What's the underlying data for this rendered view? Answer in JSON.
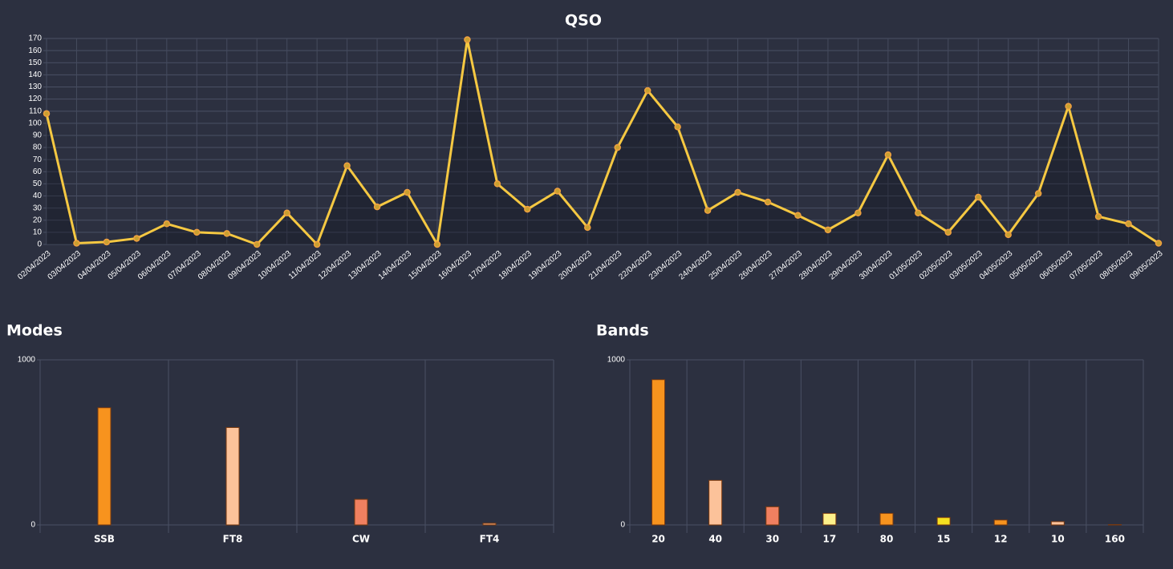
{
  "chart_data": [
    {
      "type": "line",
      "title": "QSO",
      "color": "#f5c842",
      "x": [
        "02/04/2023",
        "03/04/2023",
        "04/04/2023",
        "05/04/2023",
        "06/04/2023",
        "07/04/2023",
        "08/04/2023",
        "09/04/2023",
        "10/04/2023",
        "11/04/2023",
        "12/04/2023",
        "13/04/2023",
        "14/04/2023",
        "15/04/2023",
        "16/04/2023",
        "17/04/2023",
        "18/04/2023",
        "19/04/2023",
        "20/04/2023",
        "21/04/2023",
        "22/04/2023",
        "23/04/2023",
        "24/04/2023",
        "25/04/2023",
        "26/04/2023",
        "27/04/2023",
        "28/04/2023",
        "29/04/2023",
        "30/04/2023",
        "01/05/2023",
        "02/05/2023",
        "03/05/2023",
        "04/05/2023",
        "05/05/2023",
        "06/05/2023",
        "07/05/2023",
        "08/05/2023",
        "09/05/2023"
      ],
      "values": [
        108,
        1,
        2,
        5,
        17,
        10,
        9,
        0,
        26,
        0,
        65,
        31,
        43,
        0,
        169,
        50,
        29,
        44,
        14,
        80,
        127,
        97,
        28,
        43,
        35,
        24,
        12,
        26,
        74,
        26,
        10,
        39,
        8,
        42,
        114,
        23,
        17,
        1
      ],
      "ylim": [
        0,
        170
      ],
      "yticks": [
        0,
        10,
        20,
        30,
        40,
        50,
        60,
        70,
        80,
        90,
        100,
        110,
        120,
        130,
        140,
        150,
        160,
        170
      ],
      "grid": true
    },
    {
      "type": "bar",
      "title": "Modes",
      "categories": [
        "SSB",
        "FT8",
        "CW",
        "FT4"
      ],
      "values": [
        710,
        590,
        155,
        10
      ],
      "colors": [
        "#f7931e",
        "#fcc29a",
        "#f08060",
        "#f5a878"
      ],
      "ylim": [
        0,
        1000
      ],
      "yticks": [
        0,
        1000
      ],
      "grid": true
    },
    {
      "type": "bar",
      "title": "Bands",
      "categories": [
        "20",
        "40",
        "30",
        "17",
        "80",
        "15",
        "12",
        "10",
        "160"
      ],
      "values": [
        880,
        270,
        110,
        70,
        70,
        45,
        30,
        20,
        2
      ],
      "colors": [
        "#f7931e",
        "#fcc29a",
        "#f08060",
        "#fdf08a",
        "#f7931e",
        "#f5e020",
        "#f7931e",
        "#fcc29a",
        "#f08060"
      ],
      "ylim": [
        0,
        1000
      ],
      "yticks": [
        0,
        1000
      ],
      "grid": true
    }
  ]
}
